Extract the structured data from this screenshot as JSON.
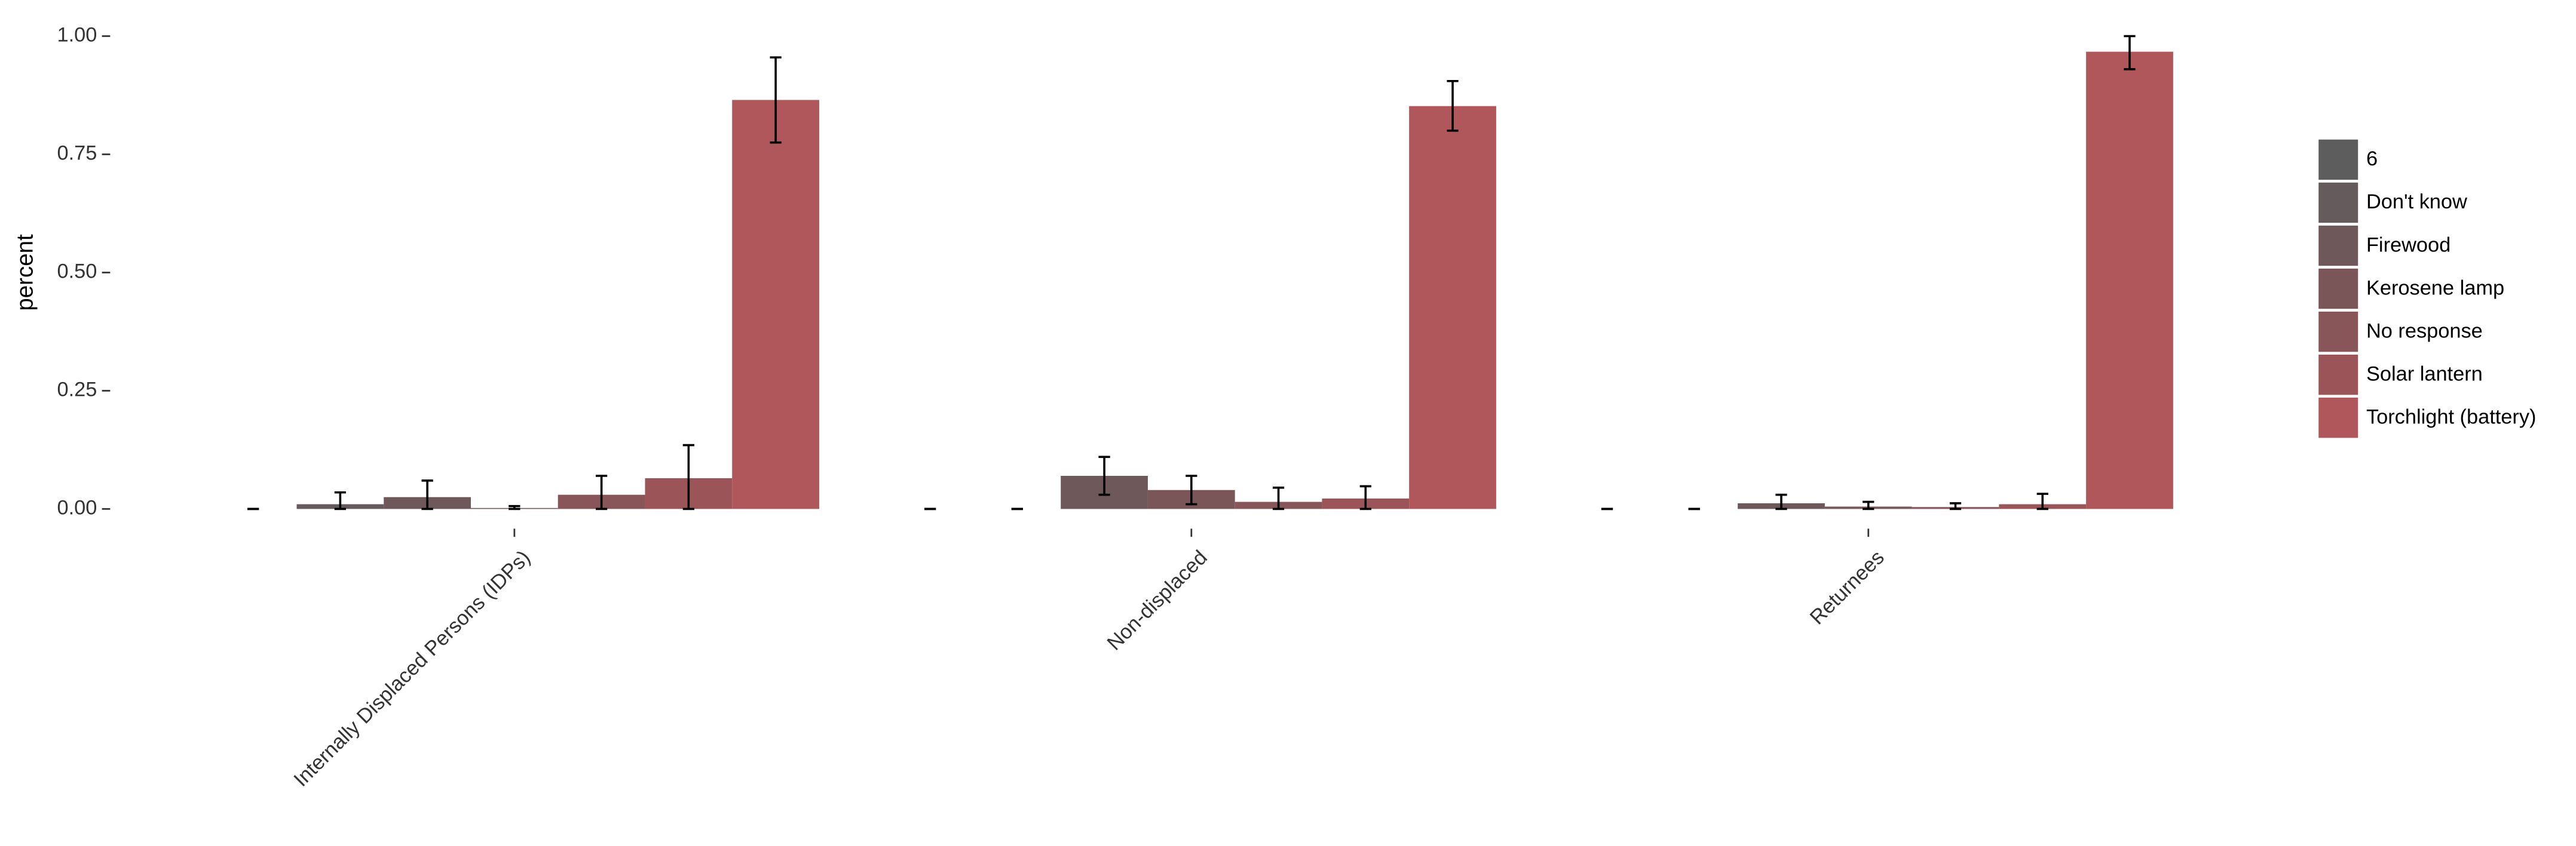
{
  "chart_data": {
    "type": "bar",
    "y_label": "percent",
    "categories": [
      "Internally Displaced Persons (IDPs)",
      "Non-displaced",
      "Returnees"
    ],
    "ylim": [
      0,
      1.0
    ],
    "yticks": [
      {
        "value": 0,
        "label": "0.00"
      },
      {
        "value": 0.25,
        "label": "0.25"
      },
      {
        "value": 0.5,
        "label": "0.50"
      },
      {
        "value": 0.75,
        "label": "0.75"
      },
      {
        "value": 1.0,
        "label": "1.00"
      }
    ],
    "grid": false,
    "legend": "right",
    "series": [
      {
        "name": "6",
        "color": "#5d5d5d",
        "values": [
          0,
          0,
          0
        ],
        "lower": [
          0,
          0,
          0
        ],
        "upper": [
          0,
          0,
          0
        ]
      },
      {
        "name": "Don't know",
        "color": "#655a5c",
        "values": [
          0.01,
          0,
          0
        ],
        "lower": [
          0,
          0,
          0
        ],
        "upper": [
          0.035,
          0,
          0
        ]
      },
      {
        "name": "Firewood",
        "color": "#6e585a",
        "values": [
          0.025,
          0.07,
          0.012
        ],
        "lower": [
          0,
          0.03,
          0
        ],
        "upper": [
          0.06,
          0.11,
          0.03
        ]
      },
      {
        "name": "Kerosene lamp",
        "color": "#7a5659",
        "values": [
          0.002,
          0.04,
          0.005
        ],
        "lower": [
          0,
          0.01,
          0
        ],
        "upper": [
          0.006,
          0.07,
          0.015
        ]
      },
      {
        "name": "No response",
        "color": "#885558",
        "values": [
          0.03,
          0.015,
          0.004
        ],
        "lower": [
          0,
          0,
          0
        ],
        "upper": [
          0.07,
          0.045,
          0.012
        ]
      },
      {
        "name": "Solar lantern",
        "color": "#9b5558",
        "values": [
          0.065,
          0.022,
          0.01
        ],
        "lower": [
          0,
          0,
          0
        ],
        "upper": [
          0.135,
          0.048,
          0.032
        ]
      },
      {
        "name": "Torchlight (battery)",
        "color": "#b0575b",
        "values": [
          0.865,
          0.852,
          0.967
        ],
        "lower": [
          0.775,
          0.8,
          0.93
        ],
        "upper": [
          0.955,
          0.905,
          1.0
        ]
      }
    ]
  }
}
